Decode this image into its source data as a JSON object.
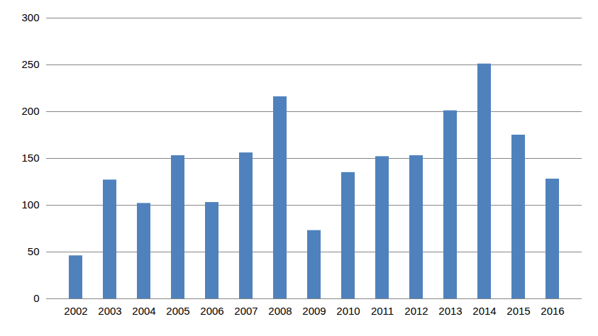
{
  "chart_data": {
    "type": "bar",
    "categories": [
      "2002",
      "2003",
      "2004",
      "2005",
      "2006",
      "2007",
      "2008",
      "2009",
      "2010",
      "2011",
      "2012",
      "2013",
      "2014",
      "2015",
      "2016"
    ],
    "values": [
      46,
      127,
      102,
      153,
      103,
      156,
      216,
      73,
      135,
      152,
      153,
      201,
      251,
      175,
      128
    ],
    "color": "#4f81bd",
    "ylim": [
      0,
      300
    ],
    "yticks": [
      0,
      50,
      100,
      150,
      200,
      250,
      300
    ],
    "grid": true
  }
}
